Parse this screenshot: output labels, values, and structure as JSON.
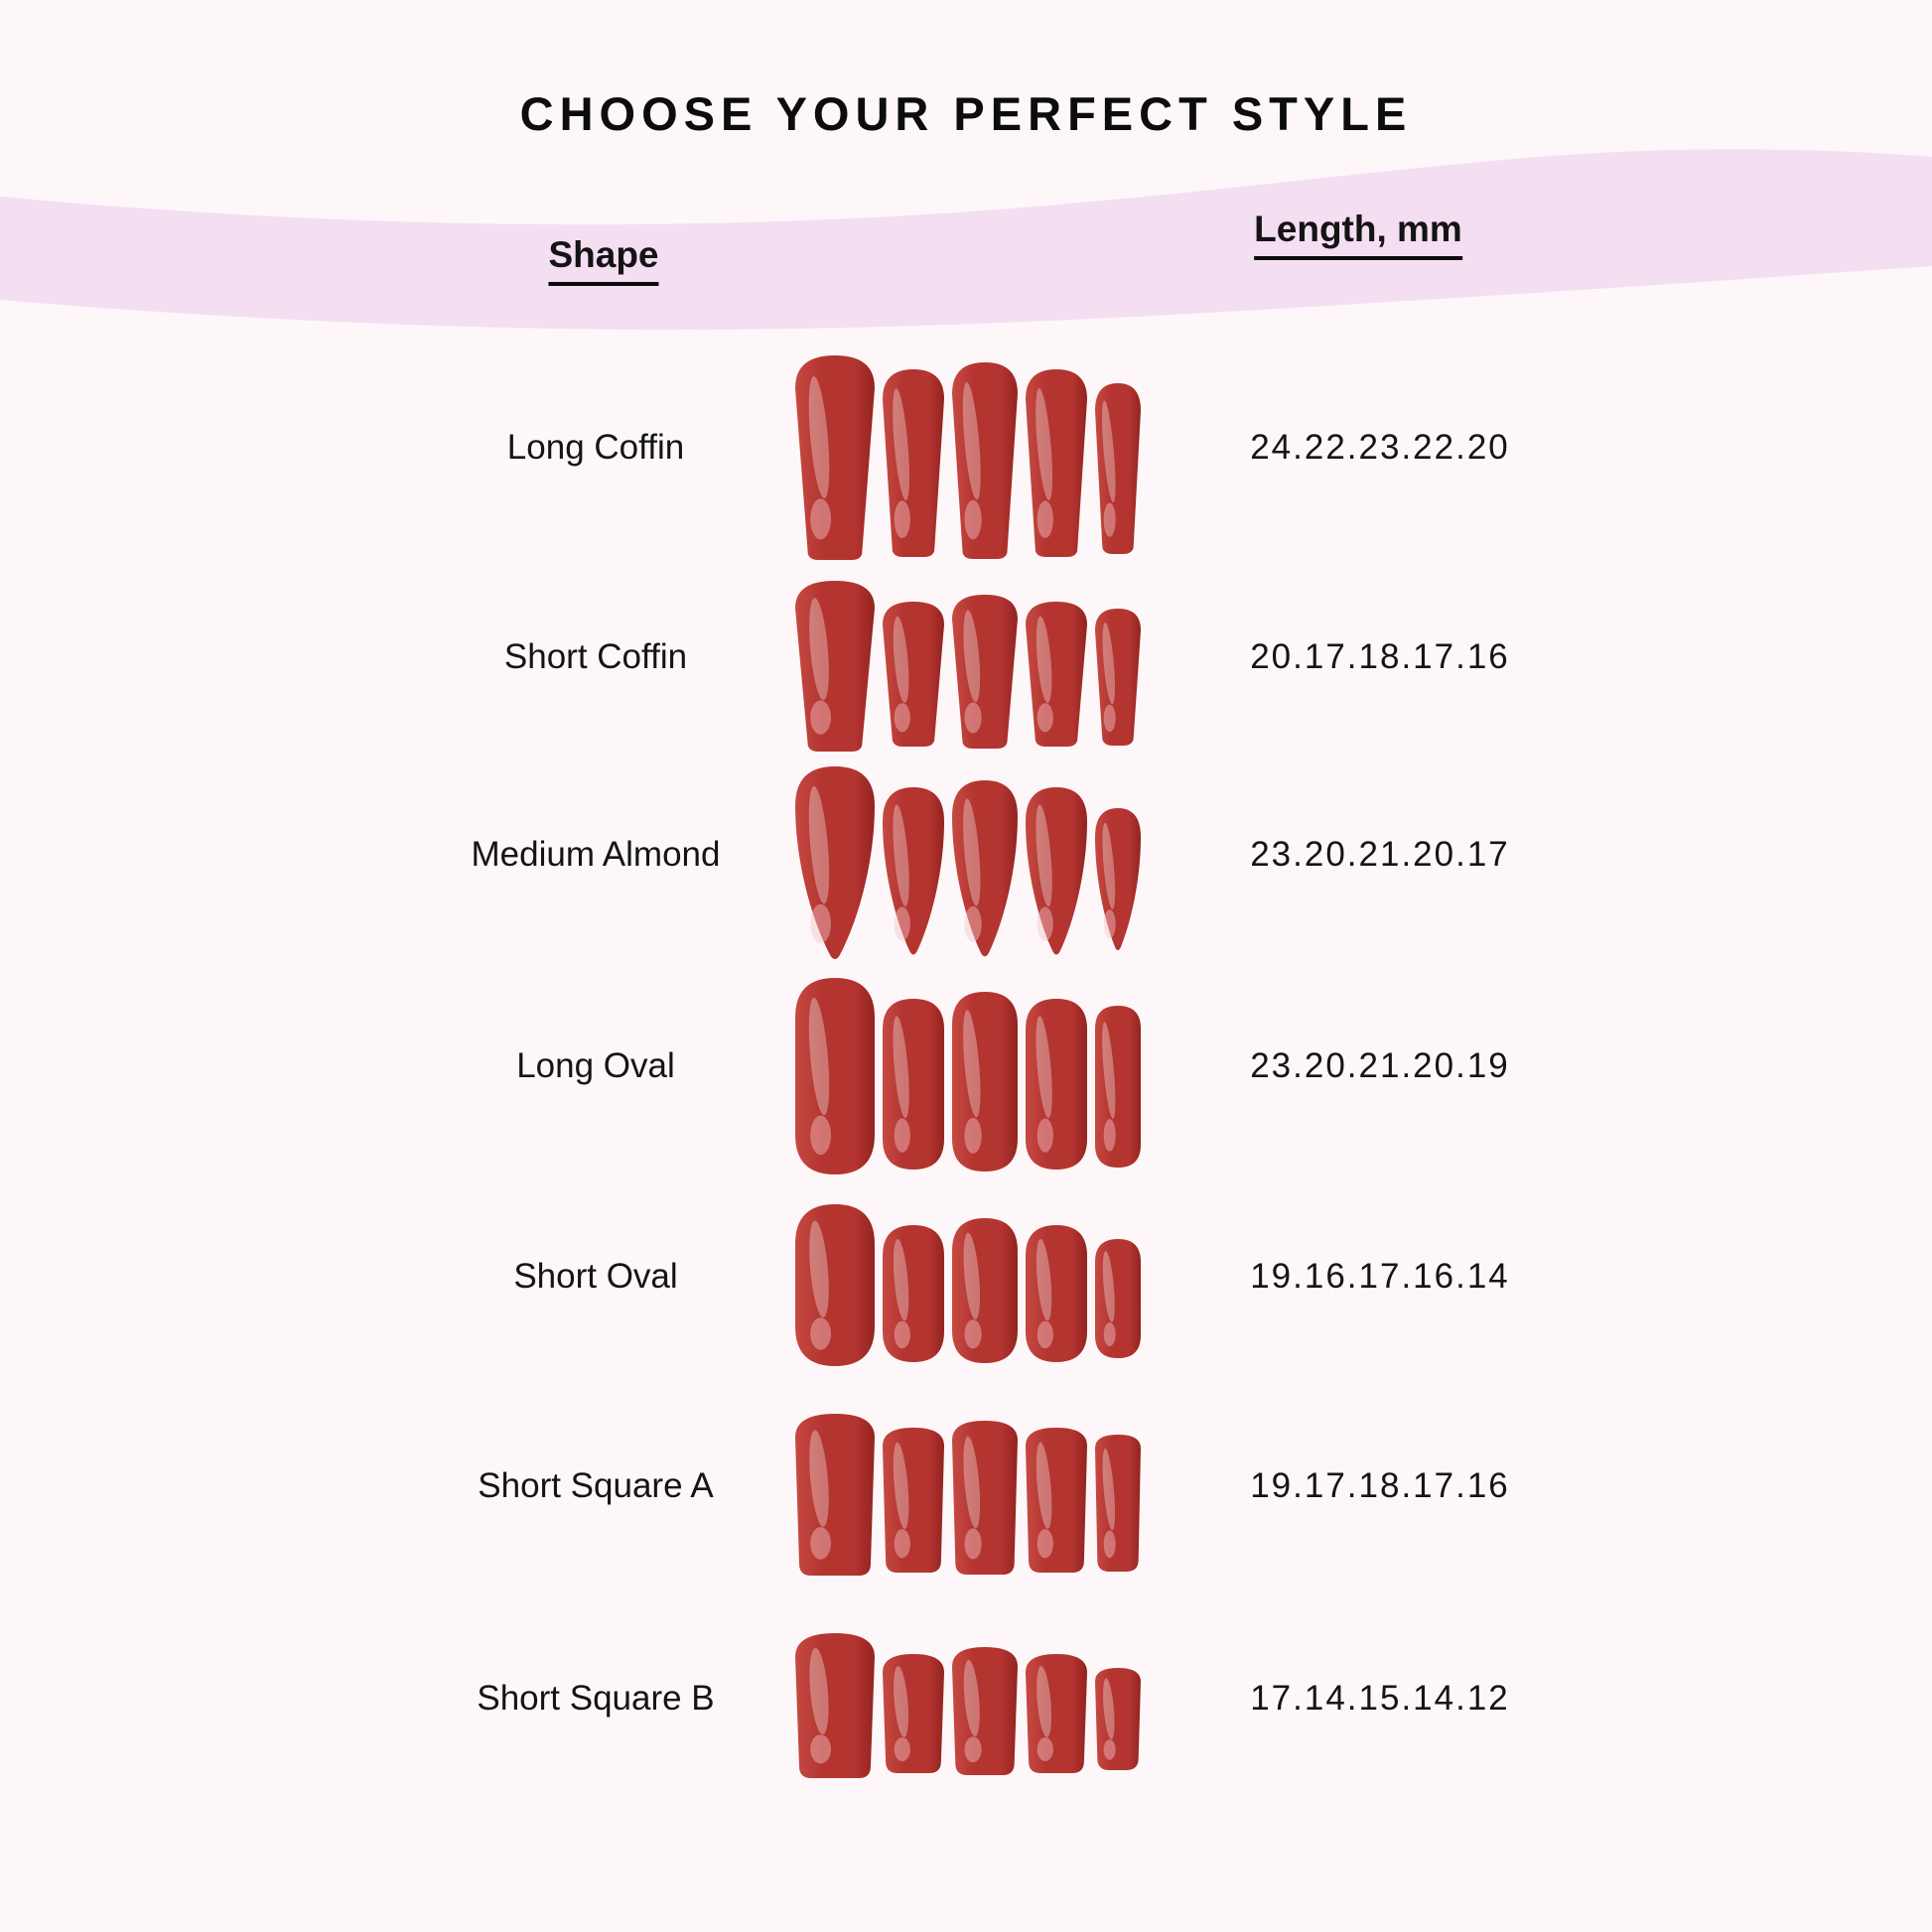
{
  "title": "CHOOSE YOUR PERFECT STYLE",
  "table": {
    "headers": {
      "shape": "Shape",
      "length": "Length, mm"
    },
    "rows": [
      {
        "shape": "Long Coffin",
        "nail_type": "coffin",
        "lengths_label": "24.22.23.22.20",
        "lengths_mm": [
          24,
          22,
          23,
          22,
          20
        ]
      },
      {
        "shape": "Short Coffin",
        "nail_type": "coffin",
        "lengths_label": "20.17.18.17.16",
        "lengths_mm": [
          20,
          17,
          18,
          17,
          16
        ]
      },
      {
        "shape": "Medium Almond",
        "nail_type": "almond",
        "lengths_label": "23.20.21.20.17",
        "lengths_mm": [
          23,
          20,
          21,
          20,
          17
        ]
      },
      {
        "shape": "Long Oval",
        "nail_type": "oval",
        "lengths_label": "23.20.21.20.19",
        "lengths_mm": [
          23,
          20,
          21,
          20,
          19
        ]
      },
      {
        "shape": "Short Oval",
        "nail_type": "oval",
        "lengths_label": "19.16.17.16.14",
        "lengths_mm": [
          19,
          16,
          17,
          16,
          14
        ]
      },
      {
        "shape": "Short Square A",
        "nail_type": "square",
        "lengths_label": "19.17.18.17.16",
        "lengths_mm": [
          19,
          17,
          18,
          17,
          16
        ]
      },
      {
        "shape": "Short Square B",
        "nail_type": "square",
        "lengths_label": "17.14.15.14.12",
        "lengths_mm": [
          17,
          14,
          15,
          14,
          12
        ]
      }
    ]
  },
  "colors": {
    "background": "#fdf7f9",
    "band": "#f4def1",
    "text": "#141414",
    "nail_red": "#b43430",
    "nail_red_light": "#c54a42",
    "nail_red_dark": "#93231f",
    "nail_gloss": "#ffffff",
    "nail_sheen": "#f3c3c8"
  }
}
